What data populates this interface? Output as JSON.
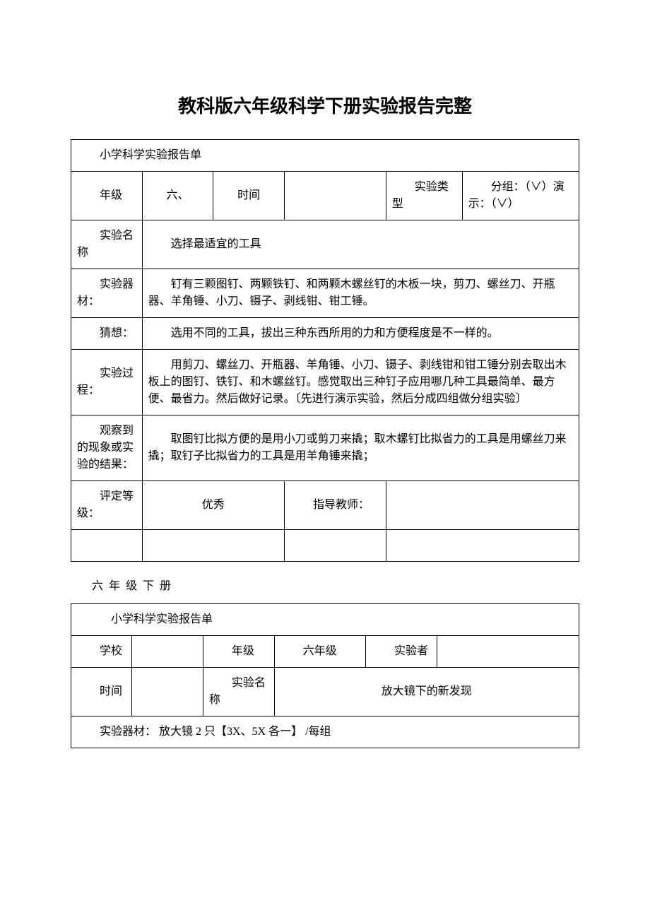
{
  "document": {
    "title": "教科版六年级科学下册实验报告完整",
    "subtitle": "六 年 级 下 册"
  },
  "table1": {
    "header": "小学科学实验报告单",
    "row1": {
      "grade_label": "年级",
      "grade_value": "六、",
      "time_label": "时间",
      "time_value": "",
      "type_label": "实验类型",
      "type_value": "分组：（∨）演示：（∨）"
    },
    "row2": {
      "name_label": "实验名称",
      "name_value": "选择最适宜的工具"
    },
    "row3": {
      "equipment_label": "实验器材：",
      "equipment_value": "钉有三颗图钉、两颗铁钉、和两颗木螺丝钉的木板一块，剪刀、螺丝刀、开瓶器、羊角锤、小刀、镊子、剥线钳、钳工锤。"
    },
    "row4": {
      "guess_label": "猜想：",
      "guess_value": "选用不同的工具，拔出三种东西所用的力和方便程度是不一样的。"
    },
    "row5": {
      "process_label": "实验过程：",
      "process_value": "用剪刀、螺丝刀、开瓶器、羊角锤、小刀、镊子、剥线钳和钳工锤分别去取出木板上的图钉、铁钉、和木螺丝钉。感觉取出三种钉子应用哪几种工具最简单、最方便、最省力。然后做好记录。〔先进行演示实验，然后分成四组做分组实验〕"
    },
    "row6": {
      "observe_label": "观察到的现象或实验的结果：",
      "observe_value": "取图钉比拟方便的是用小刀或剪刀来撬；取木螺钉比拟省力的工具是用螺丝刀来撬；取钉子比拟省力的工具是用羊角锤来撬；"
    },
    "row7": {
      "rating_label": "评定等级：",
      "rating_value": "优秀",
      "teacher_label": "指导教师：",
      "teacher_value": ""
    }
  },
  "table2": {
    "header": "小学科学实验报告单",
    "row1": {
      "school_label": "学校",
      "school_value": "",
      "grade_label": "年级",
      "grade_value": "六年级",
      "tester_label": "实验者",
      "tester_value": ""
    },
    "row2": {
      "time_label": "时间",
      "time_value": "",
      "name_label": "实验名称",
      "name_value": "放大镜下的新发现"
    },
    "row3": {
      "equipment_text": "实验器材：  放大镜 2 只【3X、5X 各一】 /每组"
    }
  }
}
